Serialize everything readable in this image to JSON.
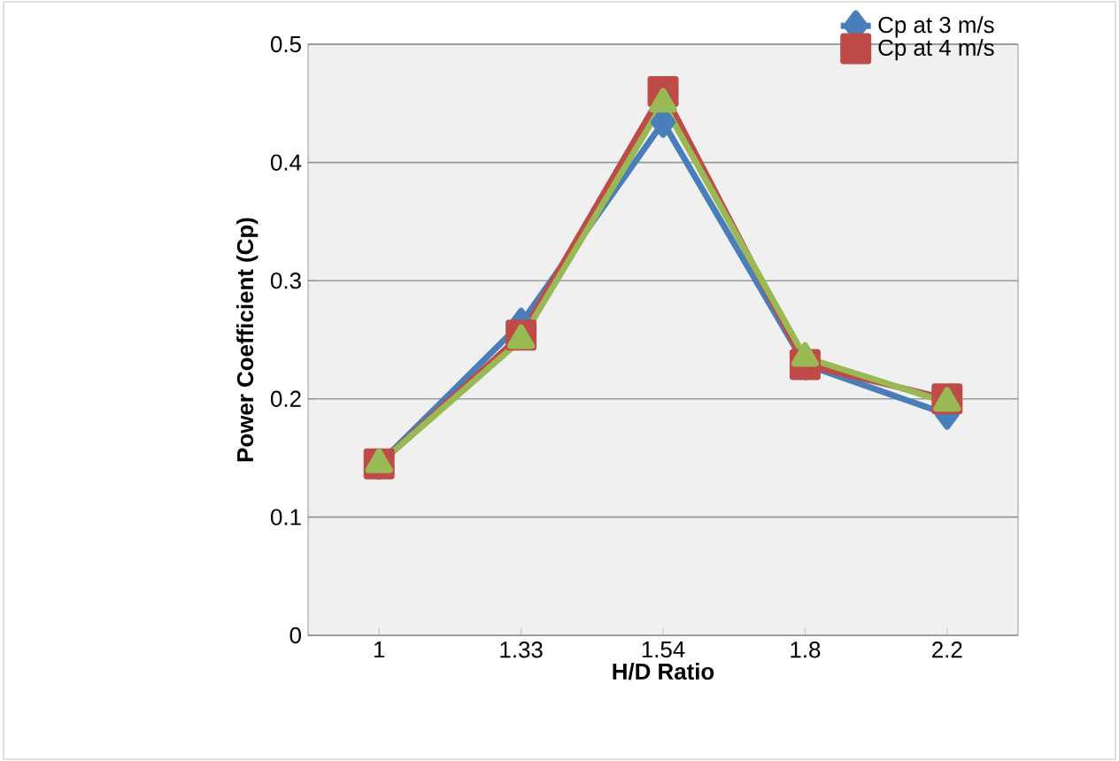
{
  "chart_data": {
    "type": "line",
    "xlabel": "H/D Ratio",
    "ylabel": "Power Coefficient (Cp)",
    "categories": [
      "1",
      "1.33",
      "1.54",
      "1.8",
      "2.2"
    ],
    "series": [
      {
        "name": "Cp at 3 m/s",
        "color": "#4a7ebb",
        "marker": "diamond",
        "values": [
          0.145,
          0.264,
          0.434,
          0.229,
          0.187
        ]
      },
      {
        "name": "Cp at 4 m/s",
        "color": "#be4b48",
        "marker": "square",
        "values": [
          0.145,
          0.254,
          0.46,
          0.229,
          0.2
        ]
      },
      {
        "color": "#98b954",
        "marker": "triangle",
        "values": [
          0.145,
          0.25,
          0.45,
          0.235,
          0.197
        ]
      }
    ],
    "ylim": [
      0,
      0.5
    ],
    "yticks": [
      0,
      0.1,
      0.2,
      0.3,
      0.4,
      0.5
    ],
    "grid": "y",
    "legend": "top right"
  }
}
